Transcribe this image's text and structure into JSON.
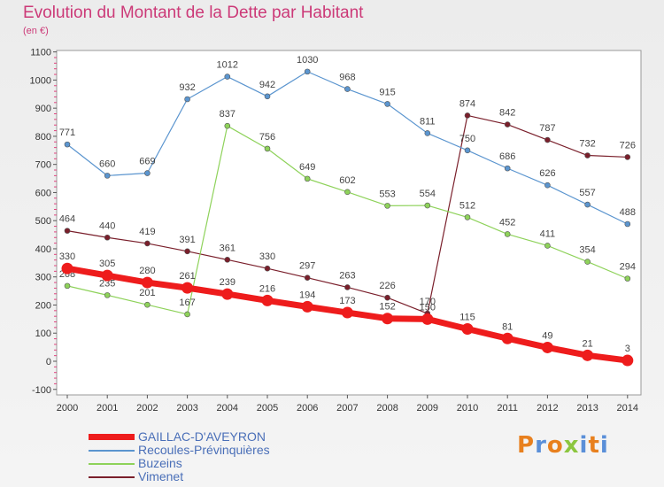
{
  "title": "Evolution du Montant de la Dette par Habitant",
  "unit": "(en €)",
  "logo": "Proxiti",
  "logo_colors": [
    "#e8801e",
    "#5a8fd8",
    "#e8801e",
    "#8cc63f",
    "#5a8fd8",
    "#e8801e",
    "#5a8fd8"
  ],
  "chart_data": {
    "type": "line",
    "x": [
      2000,
      2001,
      2002,
      2003,
      2004,
      2005,
      2006,
      2007,
      2008,
      2009,
      2010,
      2011,
      2012,
      2013,
      2014
    ],
    "ylim": [
      -100,
      1100
    ],
    "yticks": [
      -100,
      0,
      100,
      200,
      300,
      400,
      500,
      600,
      700,
      800,
      900,
      1000,
      1100
    ],
    "grid": false,
    "legend_position": "bottom-left",
    "series": [
      {
        "name": "Vimenet",
        "color": "#7a1f2b",
        "values": [
          464,
          440,
          419,
          391,
          361,
          330,
          297,
          263,
          226,
          170,
          874,
          842,
          787,
          732,
          726
        ]
      },
      {
        "name": "Buzeins",
        "color": "#8ed25a",
        "values": [
          268,
          235,
          201,
          167,
          837,
          756,
          649,
          602,
          553,
          554,
          512,
          452,
          411,
          354,
          294
        ]
      },
      {
        "name": "Recoules-Prévinquières",
        "color": "#5b95cf",
        "values": [
          771,
          660,
          669,
          932,
          1012,
          942,
          1030,
          968,
          915,
          811,
          750,
          686,
          626,
          557,
          488
        ]
      },
      {
        "name": "GAILLAC-D'AVEYRON",
        "color": "#ee1c1c",
        "values": [
          330,
          305,
          280,
          261,
          239,
          216,
          194,
          173,
          152,
          150,
          115,
          81,
          49,
          21,
          3
        ]
      }
    ]
  }
}
